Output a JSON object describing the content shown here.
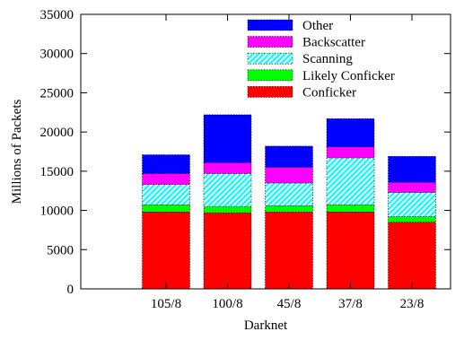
{
  "chart_data": {
    "type": "bar",
    "stacked": true,
    "xlabel": "Darknet",
    "ylabel": "Millions of Packets",
    "ylim": [
      0,
      35000
    ],
    "yticks": [
      0,
      5000,
      10000,
      15000,
      20000,
      25000,
      30000,
      35000
    ],
    "categories": [
      "105/8",
      "100/8",
      "45/8",
      "37/8",
      "23/8"
    ],
    "legend_position": "top-right",
    "grid": false,
    "series": [
      {
        "name": "Conficker",
        "color": "#ff0000",
        "pattern": "solid",
        "values": [
          9800,
          9700,
          9800,
          9800,
          8500
        ]
      },
      {
        "name": "Likely Conficker",
        "color": "#00ff00",
        "pattern": "solid",
        "values": [
          900,
          800,
          800,
          900,
          700
        ]
      },
      {
        "name": "Scanning",
        "color": "#00ffff",
        "pattern": "hatched",
        "values": [
          2600,
          4200,
          2900,
          6000,
          3100
        ]
      },
      {
        "name": "Backscatter",
        "color": "#ff00ff",
        "pattern": "solid",
        "values": [
          1400,
          1400,
          2000,
          1400,
          1300
        ]
      },
      {
        "name": "Other",
        "color": "#0000ff",
        "pattern": "solid",
        "values": [
          2400,
          6100,
          2700,
          3600,
          3300
        ]
      }
    ]
  }
}
